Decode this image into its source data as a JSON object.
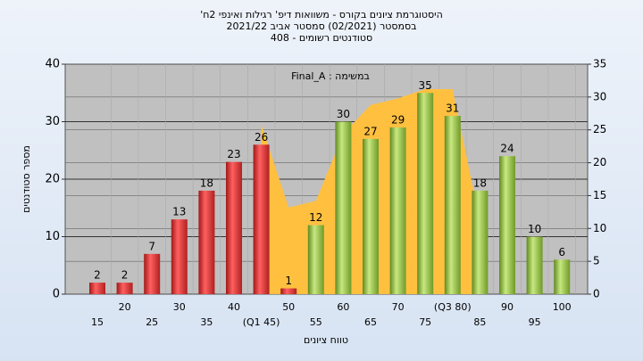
{
  "chart_data": {
    "type": "bar",
    "title": [
      "'היסטוגרמת ציונים בקורס - משוואות דיפ' רגילות ואינפי 2ח",
      "בסמסטר  (02/2021)  סמסטר אביב 2021/22",
      "סטודנטים רשומים - 408"
    ],
    "annotation": "Final_A : במשימה",
    "x_label": "טווח ציונים",
    "y_label": "מספר סטודנטים",
    "categories": [
      "15",
      "20",
      "25",
      "30",
      "35",
      "40",
      "(Q1 45)",
      "50",
      "55",
      "60",
      "65",
      "70",
      "75",
      "(Q3 80)",
      "85",
      "90",
      "95",
      "100"
    ],
    "series": [
      {
        "color": "#e03030",
        "values": [
          2,
          2,
          7,
          13,
          18,
          23,
          26,
          1,
          null,
          null,
          null,
          null,
          null,
          null,
          null,
          null,
          null,
          null
        ]
      },
      {
        "color": "#8fbf40",
        "values": [
          null,
          null,
          null,
          null,
          null,
          null,
          null,
          null,
          12,
          30,
          27,
          29,
          35,
          31,
          18,
          24,
          10,
          6
        ]
      },
      {
        "type": "area",
        "axis": "y2",
        "color": "#ffc040",
        "values": [
          null,
          null,
          null,
          null,
          null,
          null,
          25.8,
          13.2,
          14.2,
          24.4,
          28.8,
          29.8,
          31.2,
          31.2,
          11,
          null,
          null,
          null
        ]
      }
    ],
    "ylim": [
      0,
      40
    ],
    "yticks": [
      0,
      10,
      20,
      30,
      40
    ],
    "y2lim": [
      0,
      35
    ],
    "y2ticks": [
      0,
      5,
      10,
      15,
      20,
      25,
      30,
      35
    ],
    "grid": true
  }
}
